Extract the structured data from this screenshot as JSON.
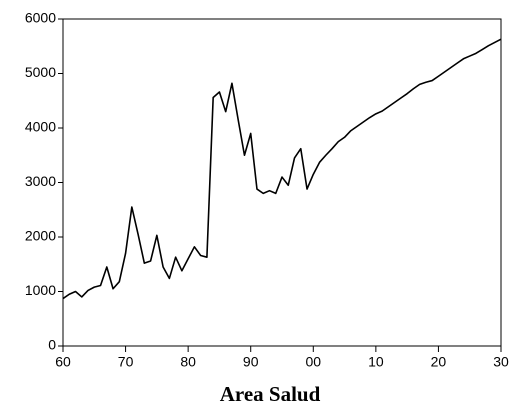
{
  "chart_data": {
    "type": "line",
    "title": "Area Salud",
    "x": [
      1960,
      1961,
      1962,
      1963,
      1964,
      1965,
      1966,
      1967,
      1968,
      1969,
      1970,
      1971,
      1972,
      1973,
      1974,
      1975,
      1976,
      1977,
      1978,
      1979,
      1980,
      1981,
      1982,
      1983,
      1984,
      1985,
      1986,
      1987,
      1988,
      1989,
      1990,
      1991,
      1992,
      1993,
      1994,
      1995,
      1996,
      1997,
      1998,
      1999,
      2000,
      2001,
      2002,
      2003,
      2004,
      2005,
      2006,
      2007,
      2008,
      2009,
      2010,
      2011,
      2012,
      2013,
      2014,
      2015,
      2016,
      2017,
      2018,
      2019,
      2020,
      2021,
      2022,
      2023,
      2024,
      2025,
      2026,
      2027,
      2028,
      2029,
      2030
    ],
    "values": [
      870,
      950,
      1000,
      900,
      1020,
      1080,
      1110,
      1450,
      1050,
      1180,
      1700,
      2550,
      2050,
      1520,
      1560,
      2030,
      1450,
      1240,
      1630,
      1380,
      1600,
      1820,
      1660,
      1630,
      4560,
      4660,
      4300,
      4820,
      4150,
      3500,
      3900,
      2880,
      2800,
      2850,
      2800,
      3100,
      2950,
      3450,
      3620,
      2880,
      3150,
      3370,
      3500,
      3620,
      3750,
      3830,
      3950,
      4030,
      4110,
      4190,
      4260,
      4310,
      4390,
      4470,
      4550,
      4630,
      4720,
      4800,
      4840,
      4870,
      4950,
      5030,
      5110,
      5190,
      5270,
      5320,
      5370,
      5440,
      5510,
      5570,
      5630
    ],
    "color": "#000000",
    "xlim": [
      1960,
      2030
    ],
    "xticks": [
      {
        "value": 1960,
        "label": "60"
      },
      {
        "value": 1970,
        "label": "70"
      },
      {
        "value": 1980,
        "label": "80"
      },
      {
        "value": 1990,
        "label": "90"
      },
      {
        "value": 2000,
        "label": "00"
      },
      {
        "value": 2010,
        "label": "10"
      },
      {
        "value": 2020,
        "label": "20"
      },
      {
        "value": 2030,
        "label": "30"
      }
    ],
    "ylim": [
      0,
      6000
    ],
    "yticks": [
      0,
      1000,
      2000,
      3000,
      4000,
      5000,
      6000
    ]
  }
}
